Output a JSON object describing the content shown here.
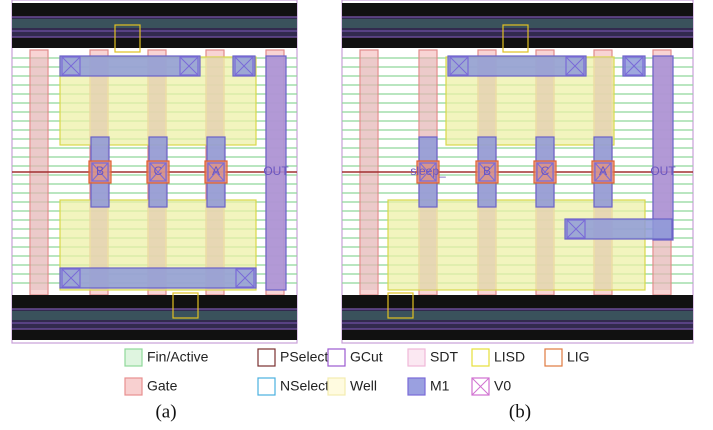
{
  "panel_a": {
    "caption": "(a)",
    "pins": [
      "B",
      "C",
      "A"
    ],
    "output": "OUT"
  },
  "panel_b": {
    "caption": "(b)",
    "pins": [
      "sleep_",
      "B",
      "C",
      "A"
    ],
    "output": "OUT"
  },
  "legend": [
    "Fin/Active",
    "PSelect",
    "GCut",
    "SDT",
    "LISD",
    "LIG",
    "Gate",
    "NSelect",
    "Well",
    "M1",
    "V0"
  ]
}
